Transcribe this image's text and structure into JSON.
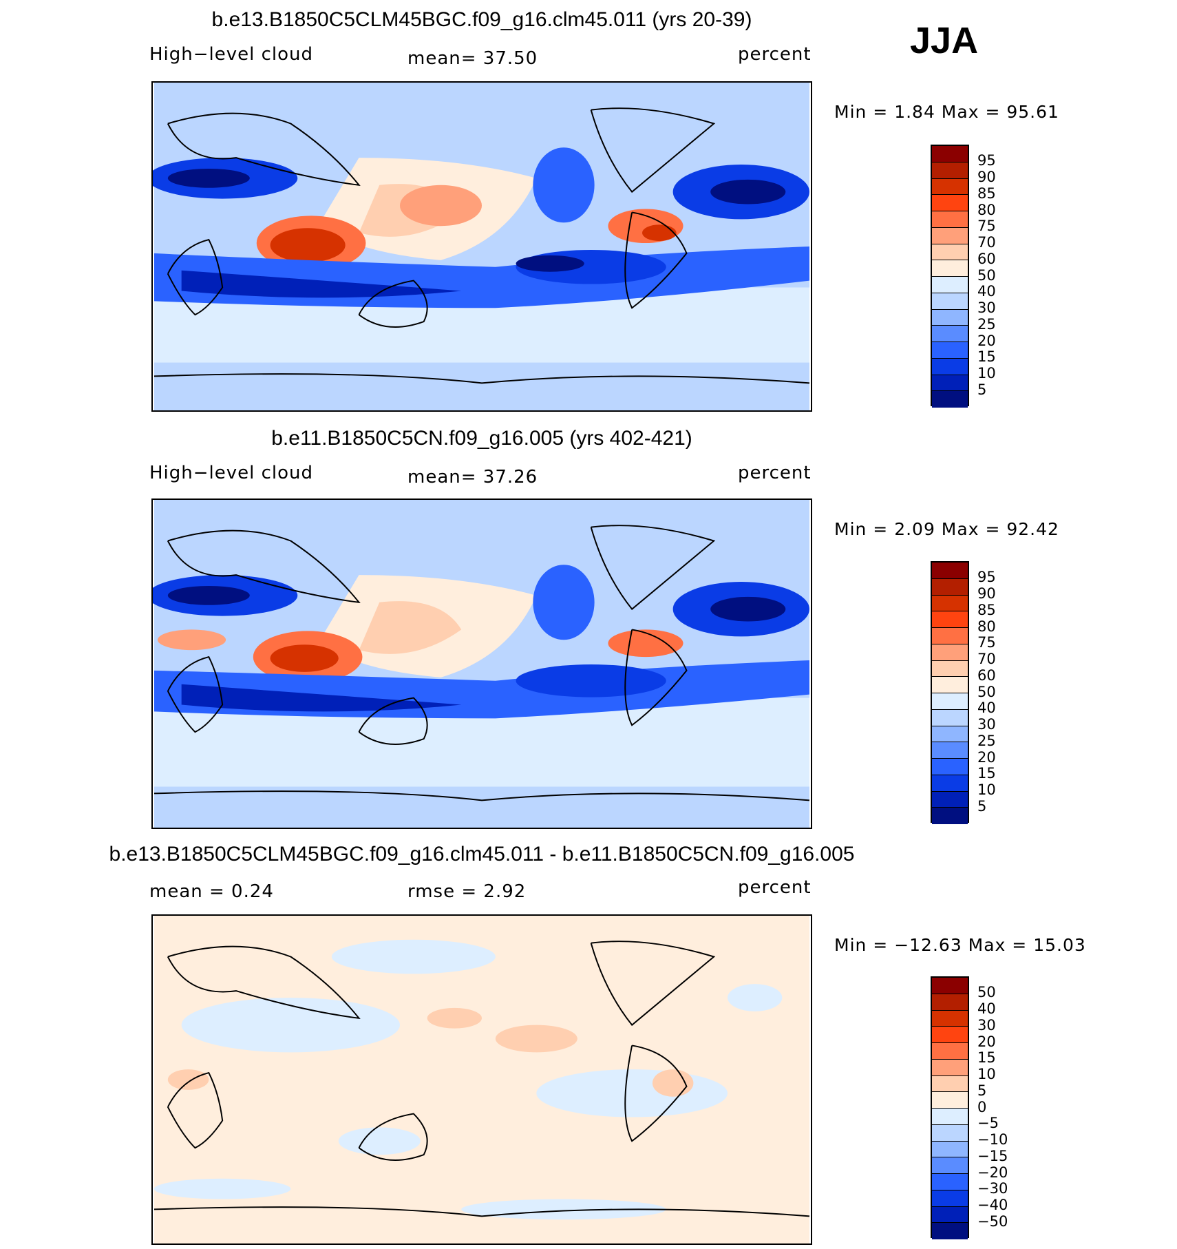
{
  "season": "JJA",
  "panels": [
    {
      "title": "b.e13.B1850C5CLM45BGC.f09_g16.clm45.011 (yrs 20-39)",
      "left_label": "High−level  cloud",
      "center_label": "mean=   37.50",
      "right_label": "percent",
      "minmax": "Min  =     1.84  Max  =    95.61",
      "colorbar": {
        "colors": [
          "#8b0000",
          "#b31f00",
          "#d63200",
          "#ff4410",
          "#ff7043",
          "#ffa07a",
          "#ffcfb0",
          "#ffeedd",
          "#ddeeff",
          "#bbd6ff",
          "#8fb6ff",
          "#5a8cff",
          "#2a62ff",
          "#0a3ce6",
          "#0020b8",
          "#000f80"
        ],
        "labels": [
          "95",
          "90",
          "85",
          "80",
          "75",
          "70",
          "60",
          "50",
          "40",
          "30",
          "25",
          "20",
          "15",
          "10",
          "5"
        ]
      }
    },
    {
      "title": "b.e11.B1850C5CN.f09_g16.005 (yrs 402-421)",
      "left_label": "High−level  cloud",
      "center_label": "mean=   37.26",
      "right_label": "percent",
      "minmax": "Min  =    2.09  Max  =    92.42",
      "colorbar": {
        "colors": [
          "#8b0000",
          "#b31f00",
          "#d63200",
          "#ff4410",
          "#ff7043",
          "#ffa07a",
          "#ffcfb0",
          "#ffeedd",
          "#ddeeff",
          "#bbd6ff",
          "#8fb6ff",
          "#5a8cff",
          "#2a62ff",
          "#0a3ce6",
          "#0020b8",
          "#000f80"
        ],
        "labels": [
          "95",
          "90",
          "85",
          "80",
          "75",
          "70",
          "60",
          "50",
          "40",
          "30",
          "25",
          "20",
          "15",
          "10",
          "5"
        ]
      }
    },
    {
      "title": "b.e13.B1850C5CLM45BGC.f09_g16.clm45.011 - b.e11.B1850C5CN.f09_g16.005",
      "left_label": "mean  =     0.24",
      "center_label": "rmse  =     2.92",
      "right_label": "percent",
      "minmax": "Min  =  −12.63  Max  =    15.03",
      "colorbar": {
        "colors": [
          "#8b0000",
          "#b31f00",
          "#d63200",
          "#ff4410",
          "#ff7043",
          "#ffa07a",
          "#ffcfb0",
          "#ffeedd",
          "#ddeeff",
          "#bbd6ff",
          "#8fb6ff",
          "#5a8cff",
          "#2a62ff",
          "#0a3ce6",
          "#0020b8",
          "#000f80"
        ],
        "labels": [
          "50",
          "40",
          "30",
          "20",
          "15",
          "10",
          "5",
          "0",
          "−5",
          "−10",
          "−15",
          "−20",
          "−30",
          "−40",
          "−50"
        ]
      }
    }
  ]
}
